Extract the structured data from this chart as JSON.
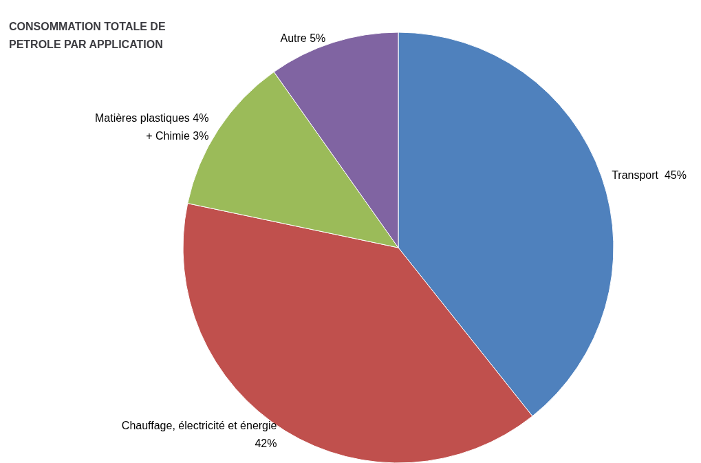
{
  "chart_data": {
    "type": "pie",
    "title": "CONSOMMATION TOTALE DE PETROLE PAR APPLICATION",
    "categories": [
      "Transport  45%",
      "Chauffage, électricité et énergie\n42%",
      "Matières plastiques 4%\n+ Chimie 3%",
      "Autre 5%"
    ],
    "values": [
      39.3,
      39,
      11.9,
      9.8
    ],
    "colors": [
      "#4f81bd",
      "#c0504d",
      "#9bbb59",
      "#8064a2"
    ],
    "legend": false
  }
}
